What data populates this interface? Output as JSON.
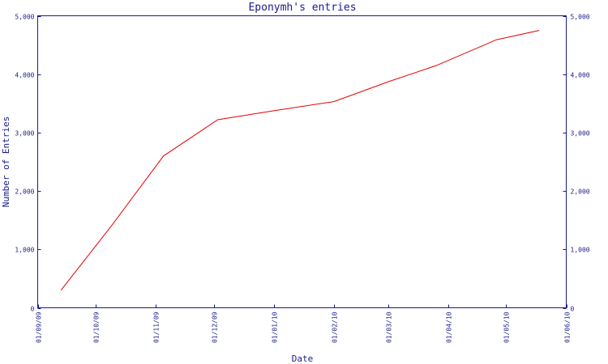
{
  "chart_data": {
    "type": "line",
    "title": "Eponymh's entries",
    "xlabel": "Date",
    "ylabel": "Number of Entries",
    "x_tick_labels": [
      "01/09/09",
      "01/10/09",
      "01/11/09",
      "01/12/09",
      "01/01/10",
      "01/02/10",
      "01/03/10",
      "01/04/10",
      "01/05/10",
      "01/06/10"
    ],
    "y_tick_labels": [
      "0",
      "1,000",
      "2,000",
      "3,000",
      "4,000",
      "5,000"
    ],
    "y_ticks": [
      0,
      1000,
      2000,
      3000,
      4000,
      5000
    ],
    "ylim": [
      0,
      5000
    ],
    "xlim": [
      "2009-09-01",
      "2010-06-01"
    ],
    "grid": false,
    "y_axis_right_mirror": true,
    "colors": {
      "frame": "#1a1a8c",
      "series": "#e60000"
    },
    "series": [
      {
        "points": [
          {
            "x": "2009-09-13",
            "y": 300
          },
          {
            "x": "2009-10-09",
            "y": 1400
          },
          {
            "x": "2009-11-05",
            "y": 2600
          },
          {
            "x": "2009-12-03",
            "y": 3220
          },
          {
            "x": "2010-01-02",
            "y": 3380
          },
          {
            "x": "2010-02-01",
            "y": 3530
          },
          {
            "x": "2010-03-01",
            "y": 3870
          },
          {
            "x": "2010-03-26",
            "y": 4150
          },
          {
            "x": "2010-04-26",
            "y": 4590
          },
          {
            "x": "2010-05-18",
            "y": 4750
          }
        ]
      }
    ]
  }
}
